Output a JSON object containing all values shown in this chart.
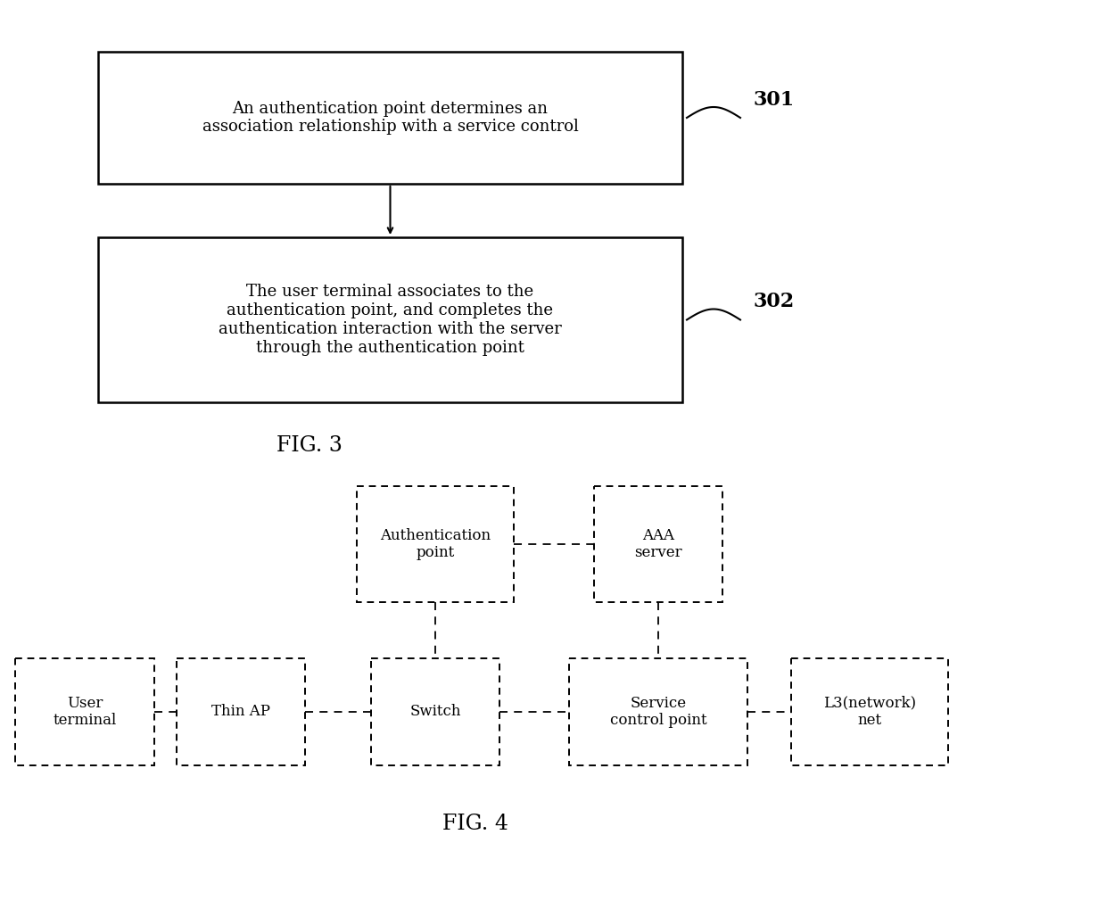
{
  "bg_color": "#ffffff",
  "fig3": {
    "title": "FIG. 3",
    "box1_text": "An authentication point determines an\nassociation relationship with a service control",
    "box2_text": "The user terminal associates to the\nauthentication point, and completes the\nauthentication interaction with the server\nthrough the authentication point",
    "label1": "301",
    "label2": "302"
  },
  "fig4": {
    "title": "FIG. 4"
  }
}
